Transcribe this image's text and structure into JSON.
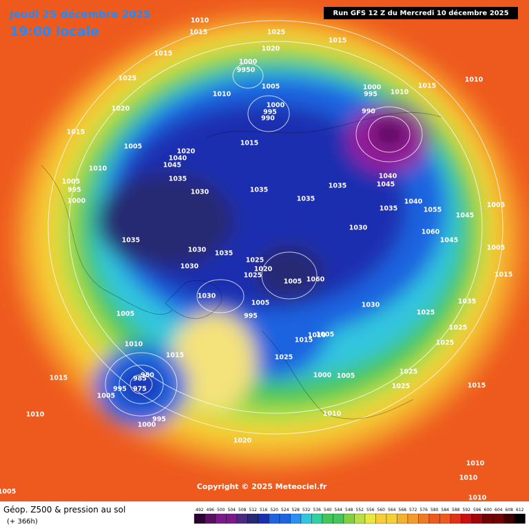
{
  "header": {
    "date": "Jeudi 25 décembre 2025",
    "time": "19:00 locale",
    "run": "Run GFS 12 Z du Mercredi 10 décembre 2025"
  },
  "footer": {
    "title": "Géop. Z500 & pression au sol",
    "subtitle": "(+ 366h)",
    "copyright": "Copyright © 2025 Meteociel.fr"
  },
  "scale": {
    "values": [
      492,
      496,
      500,
      504,
      508,
      512,
      516,
      520,
      524,
      528,
      532,
      536,
      540,
      544,
      548,
      552,
      556,
      560,
      564,
      568,
      572,
      576,
      580,
      584,
      588,
      592,
      596,
      600,
      604,
      608,
      612
    ]
  },
  "map": {
    "pressure_labels": [
      "1010",
      "1015",
      "1025",
      "1020",
      "1015",
      "1015",
      "1000",
      "9950",
      "1005",
      "1010",
      "1025",
      "1020",
      "1015",
      "1005",
      "1020",
      "1040",
      "1045",
      "1035",
      "1010",
      "1005",
      "995",
      "1000",
      "1000",
      "995",
      "990",
      "1015",
      "1030",
      "1035",
      "1035",
      "1035",
      "1030",
      "1000",
      "995",
      "990",
      "1010",
      "1015",
      "1010",
      "1040",
      "1045",
      "1035",
      "1040",
      "1055",
      "1060",
      "1045",
      "1045",
      "1005",
      "1005",
      "1015",
      "1035",
      "1025",
      "1025",
      "1025",
      "1030",
      "1035",
      "1030",
      "1035",
      "1030",
      "1025",
      "1020",
      "1025",
      "1005",
      "1060",
      "1005",
      "995",
      "1015",
      "1010",
      "1005",
      "1025",
      "1000",
      "1005",
      "1025",
      "1025",
      "1015",
      "1010",
      "1020",
      "1015",
      "1010",
      "1005",
      "1015",
      "1005",
      "995",
      "980",
      "985",
      "975",
      "995",
      "1000",
      "1010",
      "1005",
      "1010",
      "1010",
      "1010",
      "1030"
    ]
  }
}
